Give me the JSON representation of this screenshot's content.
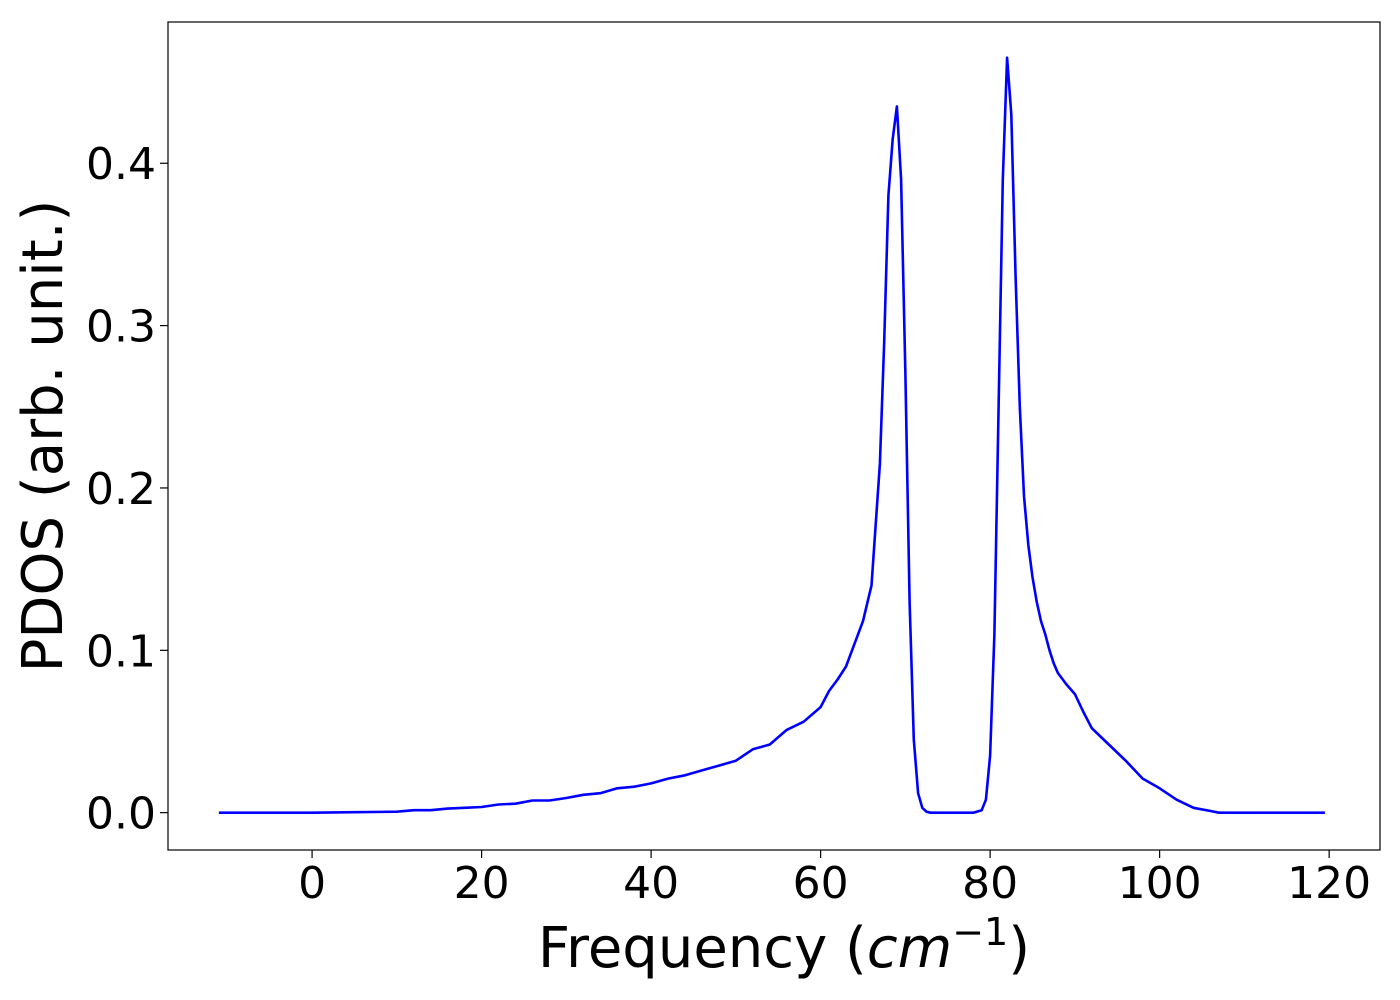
{
  "chart_data": {
    "type": "line",
    "title": "",
    "xlabel_main": "Frequency (",
    "xlabel_italic": "cm",
    "xlabel_sup": "−1",
    "xlabel_close": ")",
    "ylabel": "PDOS (arb. unit.)",
    "xlim": [
      -17,
      126
    ],
    "ylim": [
      -0.023,
      0.487
    ],
    "xticks": [
      0,
      20,
      40,
      60,
      80,
      100,
      120
    ],
    "xtick_labels": [
      "0",
      "20",
      "40",
      "60",
      "80",
      "100",
      "120"
    ],
    "yticks": [
      0.0,
      0.1,
      0.2,
      0.3,
      0.4
    ],
    "ytick_labels": [
      "0.0",
      "0.1",
      "0.2",
      "0.3",
      "0.4"
    ],
    "grid": false,
    "series": [
      {
        "color": "#0000ff",
        "x": [
          -11,
          -5,
          0,
          5,
          10,
          12,
          14,
          16,
          18,
          20,
          22,
          24,
          26,
          28,
          30,
          32,
          34,
          36,
          38,
          40,
          42,
          44,
          46,
          48,
          50,
          52,
          54,
          56,
          58,
          60,
          61,
          62,
          63,
          64,
          65,
          66,
          67,
          67.5,
          68,
          68.5,
          69,
          69.5,
          70,
          70.5,
          71,
          71.5,
          72,
          72.5,
          73,
          73.5,
          74,
          75,
          78,
          79,
          79.5,
          80,
          80.5,
          81,
          81.5,
          82,
          82.5,
          83,
          83.5,
          84,
          84.5,
          85,
          85.5,
          86,
          86.5,
          87,
          87.5,
          88,
          89,
          90,
          91,
          92,
          94,
          96,
          98,
          100,
          102,
          104,
          106,
          107,
          108,
          109,
          110,
          111,
          113,
          116,
          119.5
        ],
        "y": [
          0.0,
          0.0,
          0.0,
          0.0003,
          0.0006,
          0.0015,
          0.0015,
          0.0025,
          0.003,
          0.0035,
          0.005,
          0.0055,
          0.0075,
          0.0075,
          0.009,
          0.011,
          0.012,
          0.015,
          0.016,
          0.018,
          0.021,
          0.023,
          0.026,
          0.029,
          0.032,
          0.039,
          0.042,
          0.051,
          0.056,
          0.065,
          0.075,
          0.082,
          0.09,
          0.104,
          0.118,
          0.14,
          0.215,
          0.29,
          0.38,
          0.415,
          0.435,
          0.39,
          0.27,
          0.13,
          0.045,
          0.012,
          0.003,
          0.0005,
          0.0,
          0.0,
          0.0,
          0.0,
          0.0,
          0.0015,
          0.008,
          0.035,
          0.11,
          0.25,
          0.39,
          0.465,
          0.43,
          0.33,
          0.25,
          0.195,
          0.165,
          0.145,
          0.13,
          0.118,
          0.11,
          0.1,
          0.092,
          0.086,
          0.079,
          0.073,
          0.062,
          0.052,
          0.042,
          0.032,
          0.021,
          0.015,
          0.008,
          0.003,
          0.001,
          0.0,
          0.0,
          0.0,
          0.0,
          0.0,
          0.0,
          0.0,
          0.0
        ]
      }
    ]
  }
}
